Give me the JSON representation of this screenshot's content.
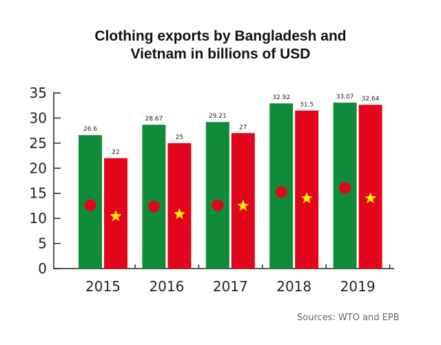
{
  "chart_data": {
    "type": "bar",
    "title": "Clothing exports by Bangladesh and Vietnam in billions of USD",
    "title_lines": [
      "Clothing exports by Bangladesh and",
      "Vietnam in billions of USD"
    ],
    "xlabel": "",
    "ylabel": "",
    "ylim": [
      0,
      35
    ],
    "yticks": [
      0,
      5,
      10,
      15,
      20,
      25,
      30,
      35
    ],
    "categories": [
      "2015",
      "2016",
      "2017",
      "2018",
      "2019"
    ],
    "series": [
      {
        "name": "Bangladesh",
        "color": "#0f8c3a",
        "marker": "red-circle",
        "values": [
          26.6,
          28.67,
          29.21,
          32.92,
          33.07
        ],
        "labels": [
          "26.6",
          "28.67",
          "29.21",
          "32.92",
          "33.07"
        ]
      },
      {
        "name": "Vietnam",
        "color": "#e3051b",
        "marker": "yellow-star",
        "values": [
          22,
          25,
          27,
          31.5,
          32.64
        ],
        "labels": [
          "22",
          "25",
          "27",
          "31.5",
          "32.64"
        ]
      }
    ],
    "grid": false,
    "legend": "none (flag motifs on bars)"
  },
  "source": "Sources: WTO and EPB",
  "colors": {
    "bangladesh_green": "#0f8c3a",
    "red": "#e3051b",
    "star_yellow": "#ffe600",
    "axis": "#222222"
  }
}
